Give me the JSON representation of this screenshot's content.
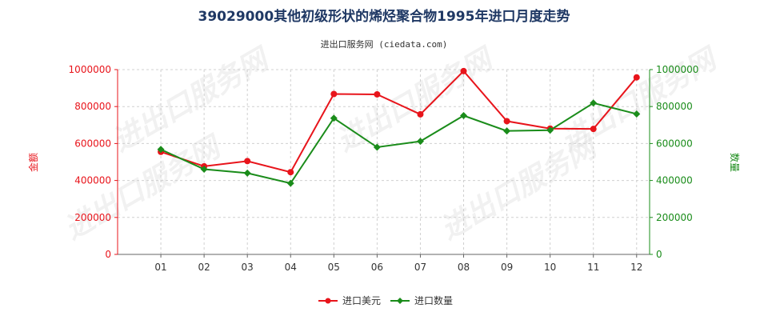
{
  "chart_data": {
    "type": "line",
    "title": "39029000其他初级形状的烯烃聚合物1995年进口月度走势",
    "subtitle": "进出口服务网 (ciedata.com)",
    "categories": [
      "01",
      "02",
      "03",
      "04",
      "05",
      "06",
      "07",
      "08",
      "09",
      "10",
      "11",
      "12"
    ],
    "y_left": {
      "label": "金额",
      "ylim": [
        0,
        1000000
      ],
      "ticks": [
        0,
        200000,
        400000,
        600000,
        800000,
        1000000
      ],
      "tick_labels": [
        "0",
        "200000",
        "400000",
        "600000",
        "800000",
        "1000000"
      ]
    },
    "y_right": {
      "label": "数量",
      "ylim": [
        0,
        1000000
      ],
      "ticks": [
        0,
        200000,
        400000,
        600000,
        800000,
        1000000
      ],
      "tick_labels": [
        "0",
        "200000",
        "400000",
        "600000",
        "800000",
        "1000000"
      ]
    },
    "series": [
      {
        "name": "进口美元",
        "axis": "left",
        "color": "#e8141b",
        "marker": "circle",
        "values": [
          555000,
          477000,
          505000,
          445000,
          868000,
          866000,
          758000,
          992000,
          721000,
          681000,
          679000,
          958000
        ]
      },
      {
        "name": "进口数量",
        "axis": "right",
        "color": "#1a8c1a",
        "marker": "diamond",
        "values": [
          568000,
          461000,
          440000,
          385000,
          737000,
          580000,
          612000,
          751000,
          668000,
          672000,
          819000,
          760000
        ]
      }
    ],
    "grid": true,
    "legend_position": "bottom"
  },
  "colors": {
    "left_axis": "#e8141b",
    "right_axis": "#1a8c1a",
    "grid": "#d0d0d0"
  },
  "watermark_text": "进出口服务网"
}
